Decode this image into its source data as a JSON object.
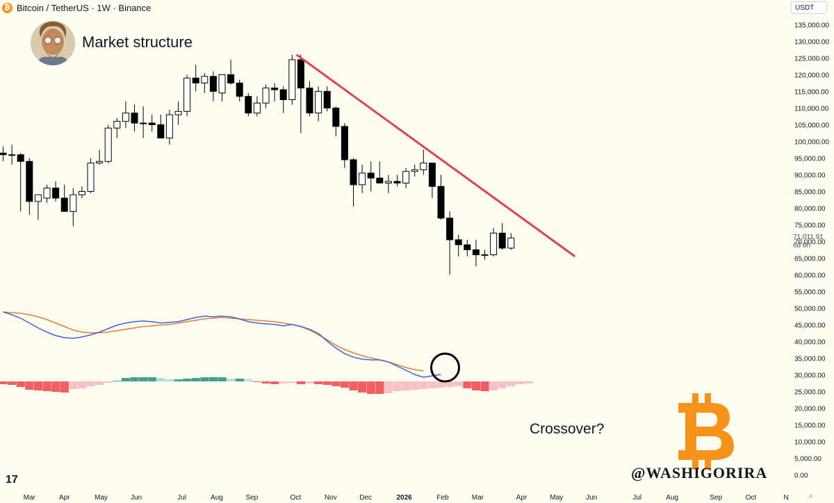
{
  "header": {
    "symbol_title": "Bitcoin / TetherUS · 1W · Binance",
    "symbol_icon": "bitcoin-icon"
  },
  "annotations": {
    "market_structure": "Market structure",
    "crossover": "Crossover?",
    "handle": "@WASHIGORIRA",
    "tv_logo": "17",
    "corner": "A"
  },
  "price_axis": {
    "currency": "USDT",
    "current_price": "71,011.91",
    "countdown": "6d 6h"
  },
  "colors": {
    "background": "#fffdf0",
    "bull_body": "#ffffff",
    "bear_body": "#000000",
    "trendline": "#d9434f",
    "macd_line": "#3d62d9",
    "signal_line": "#e57c34",
    "hist_pos_strong": "#43a08f",
    "hist_pos_weak": "#b2dfd8",
    "hist_neg_strong": "#ef5f62",
    "hist_neg_weak": "#f7c1c7",
    "bitcoin": "#f7931a"
  },
  "chart_data": [
    {
      "type": "candlestick",
      "title": "Bitcoin / TetherUS · 1W · Binance",
      "interval": "1W",
      "ylabel": "",
      "xlabel": "",
      "ylim": [
        0,
        137500
      ],
      "y_ticks": [
        135000,
        130000,
        125000,
        120000,
        115000,
        110000,
        105000,
        100000,
        95000,
        90000,
        85000,
        80000,
        75000,
        70000,
        65000,
        60000,
        55000,
        50000,
        45000,
        40000,
        35000,
        30000,
        25000,
        20000,
        15000,
        10000,
        5000,
        0
      ],
      "y_tick_labels": [
        "135,000.00",
        "130,000.00",
        "125,000.00",
        "120,000.00",
        "115,000.00",
        "110,000.00",
        "105,000.00",
        "100,000.00",
        "95,000.00",
        "90,000.00",
        "85,000.00",
        "80,000.00",
        "75,000.00",
        "70,000.00",
        "65,000.00",
        "60,000.00",
        "55,000.00",
        "50,000.00",
        "45,000.00",
        "40,000.00",
        "35,000.00",
        "30,000.00",
        "25,000.00",
        "20,000.00",
        "15,000.00",
        "10,000.00",
        "5,000.00",
        "0.00"
      ],
      "x_ticks": [
        {
          "label": "Mar",
          "index": 3
        },
        {
          "label": "Apr",
          "index": 7
        },
        {
          "label": "May",
          "index": 11.2
        },
        {
          "label": "Jun",
          "index": 15.2
        },
        {
          "label": "Jul",
          "index": 20.4
        },
        {
          "label": "Aug",
          "index": 24.4
        },
        {
          "label": "Sep",
          "index": 28.4
        },
        {
          "label": "Oct",
          "index": 33.4
        },
        {
          "label": "Nov",
          "index": 37.4
        },
        {
          "label": "Dec",
          "index": 41.4
        },
        {
          "label": "2026",
          "index": 45.8,
          "bold": true
        },
        {
          "label": "Feb",
          "index": 50.2
        },
        {
          "label": "Mar",
          "index": 54.2
        },
        {
          "label": "Apr",
          "index": 59.2
        },
        {
          "label": "May",
          "index": 63.2
        },
        {
          "label": "Jun",
          "index": 67.2
        },
        {
          "label": "Jul",
          "index": 72.4
        },
        {
          "label": "Aug",
          "index": 76.4
        },
        {
          "label": "Sep",
          "index": 81.4
        },
        {
          "label": "Oct",
          "index": 85.4
        },
        {
          "label": "N",
          "index": 89.4
        }
      ],
      "candles": [
        {
          "o": 96500,
          "h": 98500,
          "l": 94000,
          "c": 96000
        },
        {
          "o": 96000,
          "h": 99000,
          "l": 93000,
          "c": 96000
        },
        {
          "o": 96000,
          "h": 96500,
          "l": 79000,
          "c": 94000
        },
        {
          "o": 94000,
          "h": 95000,
          "l": 78000,
          "c": 82000
        },
        {
          "o": 82000,
          "h": 84000,
          "l": 76500,
          "c": 84000
        },
        {
          "o": 83000,
          "h": 87000,
          "l": 81500,
          "c": 86000
        },
        {
          "o": 86000,
          "h": 88000,
          "l": 82000,
          "c": 83000
        },
        {
          "o": 83000,
          "h": 87000,
          "l": 79000,
          "c": 79000
        },
        {
          "o": 79000,
          "h": 86000,
          "l": 74500,
          "c": 84000
        },
        {
          "o": 84000,
          "h": 86500,
          "l": 83000,
          "c": 85000
        },
        {
          "o": 85000,
          "h": 95000,
          "l": 84500,
          "c": 93500
        },
        {
          "o": 93500,
          "h": 97500,
          "l": 93000,
          "c": 94000
        },
        {
          "o": 94000,
          "h": 105000,
          "l": 93500,
          "c": 104000
        },
        {
          "o": 104000,
          "h": 107000,
          "l": 101000,
          "c": 106000
        },
        {
          "o": 106000,
          "h": 112000,
          "l": 104000,
          "c": 108500
        },
        {
          "o": 108500,
          "h": 111000,
          "l": 103000,
          "c": 105500
        },
        {
          "o": 105500,
          "h": 110500,
          "l": 101000,
          "c": 105500
        },
        {
          "o": 105500,
          "h": 108000,
          "l": 103000,
          "c": 105000
        },
        {
          "o": 105000,
          "h": 108000,
          "l": 101000,
          "c": 101000
        },
        {
          "o": 101000,
          "h": 109500,
          "l": 99000,
          "c": 108000
        },
        {
          "o": 108000,
          "h": 112000,
          "l": 105000,
          "c": 109000
        },
        {
          "o": 109000,
          "h": 120000,
          "l": 107500,
          "c": 119000
        },
        {
          "o": 119000,
          "h": 123000,
          "l": 115000,
          "c": 117500
        },
        {
          "o": 117500,
          "h": 120500,
          "l": 114500,
          "c": 119500
        },
        {
          "o": 119500,
          "h": 121000,
          "l": 112000,
          "c": 115000
        },
        {
          "o": 114500,
          "h": 120000,
          "l": 112000,
          "c": 120000
        },
        {
          "o": 120000,
          "h": 124500,
          "l": 117000,
          "c": 117500
        },
        {
          "o": 117500,
          "h": 118500,
          "l": 112000,
          "c": 113500
        },
        {
          "o": 113500,
          "h": 114500,
          "l": 107500,
          "c": 108500
        },
        {
          "o": 108500,
          "h": 113500,
          "l": 107500,
          "c": 111500
        },
        {
          "o": 111500,
          "h": 117000,
          "l": 110000,
          "c": 116000
        },
        {
          "o": 116000,
          "h": 117500,
          "l": 112000,
          "c": 115500
        },
        {
          "o": 115500,
          "h": 116500,
          "l": 108500,
          "c": 112500
        },
        {
          "o": 112500,
          "h": 126000,
          "l": 111000,
          "c": 124500
        },
        {
          "o": 124500,
          "h": 126000,
          "l": 102500,
          "c": 116000
        },
        {
          "o": 116000,
          "h": 118000,
          "l": 107500,
          "c": 108500
        },
        {
          "o": 108500,
          "h": 116500,
          "l": 106000,
          "c": 115000
        },
        {
          "o": 115000,
          "h": 116500,
          "l": 109000,
          "c": 110000
        },
        {
          "o": 110000,
          "h": 110500,
          "l": 101500,
          "c": 104500
        },
        {
          "o": 104500,
          "h": 105500,
          "l": 92000,
          "c": 94500
        },
        {
          "o": 94500,
          "h": 95000,
          "l": 80500,
          "c": 87000
        },
        {
          "o": 87000,
          "h": 93000,
          "l": 84500,
          "c": 90500
        },
        {
          "o": 90500,
          "h": 94000,
          "l": 85000,
          "c": 89000
        },
        {
          "o": 89000,
          "h": 94000,
          "l": 87500,
          "c": 87500
        },
        {
          "o": 87500,
          "h": 90000,
          "l": 84500,
          "c": 88000
        },
        {
          "o": 88000,
          "h": 90000,
          "l": 86500,
          "c": 87500
        },
        {
          "o": 87500,
          "h": 92000,
          "l": 86000,
          "c": 91000
        },
        {
          "o": 91000,
          "h": 93000,
          "l": 89500,
          "c": 91500
        },
        {
          "o": 91500,
          "h": 97500,
          "l": 90000,
          "c": 93500
        },
        {
          "o": 93500,
          "h": 93500,
          "l": 83000,
          "c": 86500
        },
        {
          "o": 86500,
          "h": 90000,
          "l": 76500,
          "c": 77000
        },
        {
          "o": 77000,
          "h": 79000,
          "l": 60000,
          "c": 70500
        },
        {
          "o": 70500,
          "h": 72000,
          "l": 65500,
          "c": 69000
        },
        {
          "o": 69000,
          "h": 70500,
          "l": 65500,
          "c": 67500
        },
        {
          "o": 67500,
          "h": 70500,
          "l": 62500,
          "c": 66000
        },
        {
          "o": 66000,
          "h": 67500,
          "l": 64500,
          "c": 66000
        },
        {
          "o": 66000,
          "h": 74000,
          "l": 65500,
          "c": 72500
        },
        {
          "o": 72500,
          "h": 75500,
          "l": 67500,
          "c": 68000
        },
        {
          "o": 68000,
          "h": 72500,
          "l": 67500,
          "c": 71000
        }
      ],
      "trendline": {
        "from": {
          "index": 33.5,
          "price": 126000
        },
        "to": {
          "index": 65.3,
          "price": 65500
        }
      }
    },
    {
      "type": "macd",
      "macd_line": [
        50000,
        48000,
        45500,
        42000,
        38500,
        35500,
        33000,
        31500,
        31000,
        32000,
        33500,
        35500,
        38000,
        40500,
        42000,
        43000,
        43500,
        43000,
        42000,
        42500,
        43000,
        44500,
        46000,
        47000,
        46500,
        47000,
        46500,
        45000,
        43000,
        42000,
        41500,
        41000,
        40000,
        41000,
        39500,
        37500,
        34500,
        29000,
        24000,
        20000,
        17500,
        16000,
        15500,
        15500,
        14000,
        11000,
        8000,
        5000,
        3000,
        4000,
        5000
      ],
      "signal_line": [
        50000,
        49500,
        49000,
        48000,
        46500,
        44500,
        42000,
        39500,
        37000,
        35500,
        35000,
        35000,
        35500,
        36500,
        37500,
        38500,
        39500,
        40000,
        40500,
        41000,
        42000,
        43000,
        44000,
        45000,
        45500,
        46000,
        45500,
        45000,
        44500,
        44000,
        43500,
        43000,
        42000,
        41000,
        39500,
        37000,
        33500,
        30000,
        26000,
        23000,
        20500,
        18500,
        17000,
        15500,
        14000,
        12000,
        10000,
        8500,
        7500
      ],
      "histogram": [
        -2000,
        -2500,
        -4000,
        -6000,
        -6500,
        -7000,
        -7500,
        -8000,
        -5500,
        -5000,
        -3500,
        -2500,
        -1000,
        500,
        2500,
        3000,
        3000,
        3000,
        2500,
        1500,
        1500,
        2000,
        2500,
        3000,
        3000,
        3000,
        2000,
        2000,
        1500,
        -500,
        -1500,
        -2000,
        -1500,
        -1000,
        -2000,
        -1500,
        -2000,
        -2500,
        -3500,
        -4500,
        -6500,
        -8000,
        -9000,
        -9000,
        -8500,
        -7000,
        -6500,
        -6000,
        -5500,
        -5000,
        -4500,
        -4000,
        -3500,
        -5000,
        -6500,
        -7000,
        -6500,
        -5000,
        -3500,
        -2000,
        -1500
      ]
    }
  ]
}
